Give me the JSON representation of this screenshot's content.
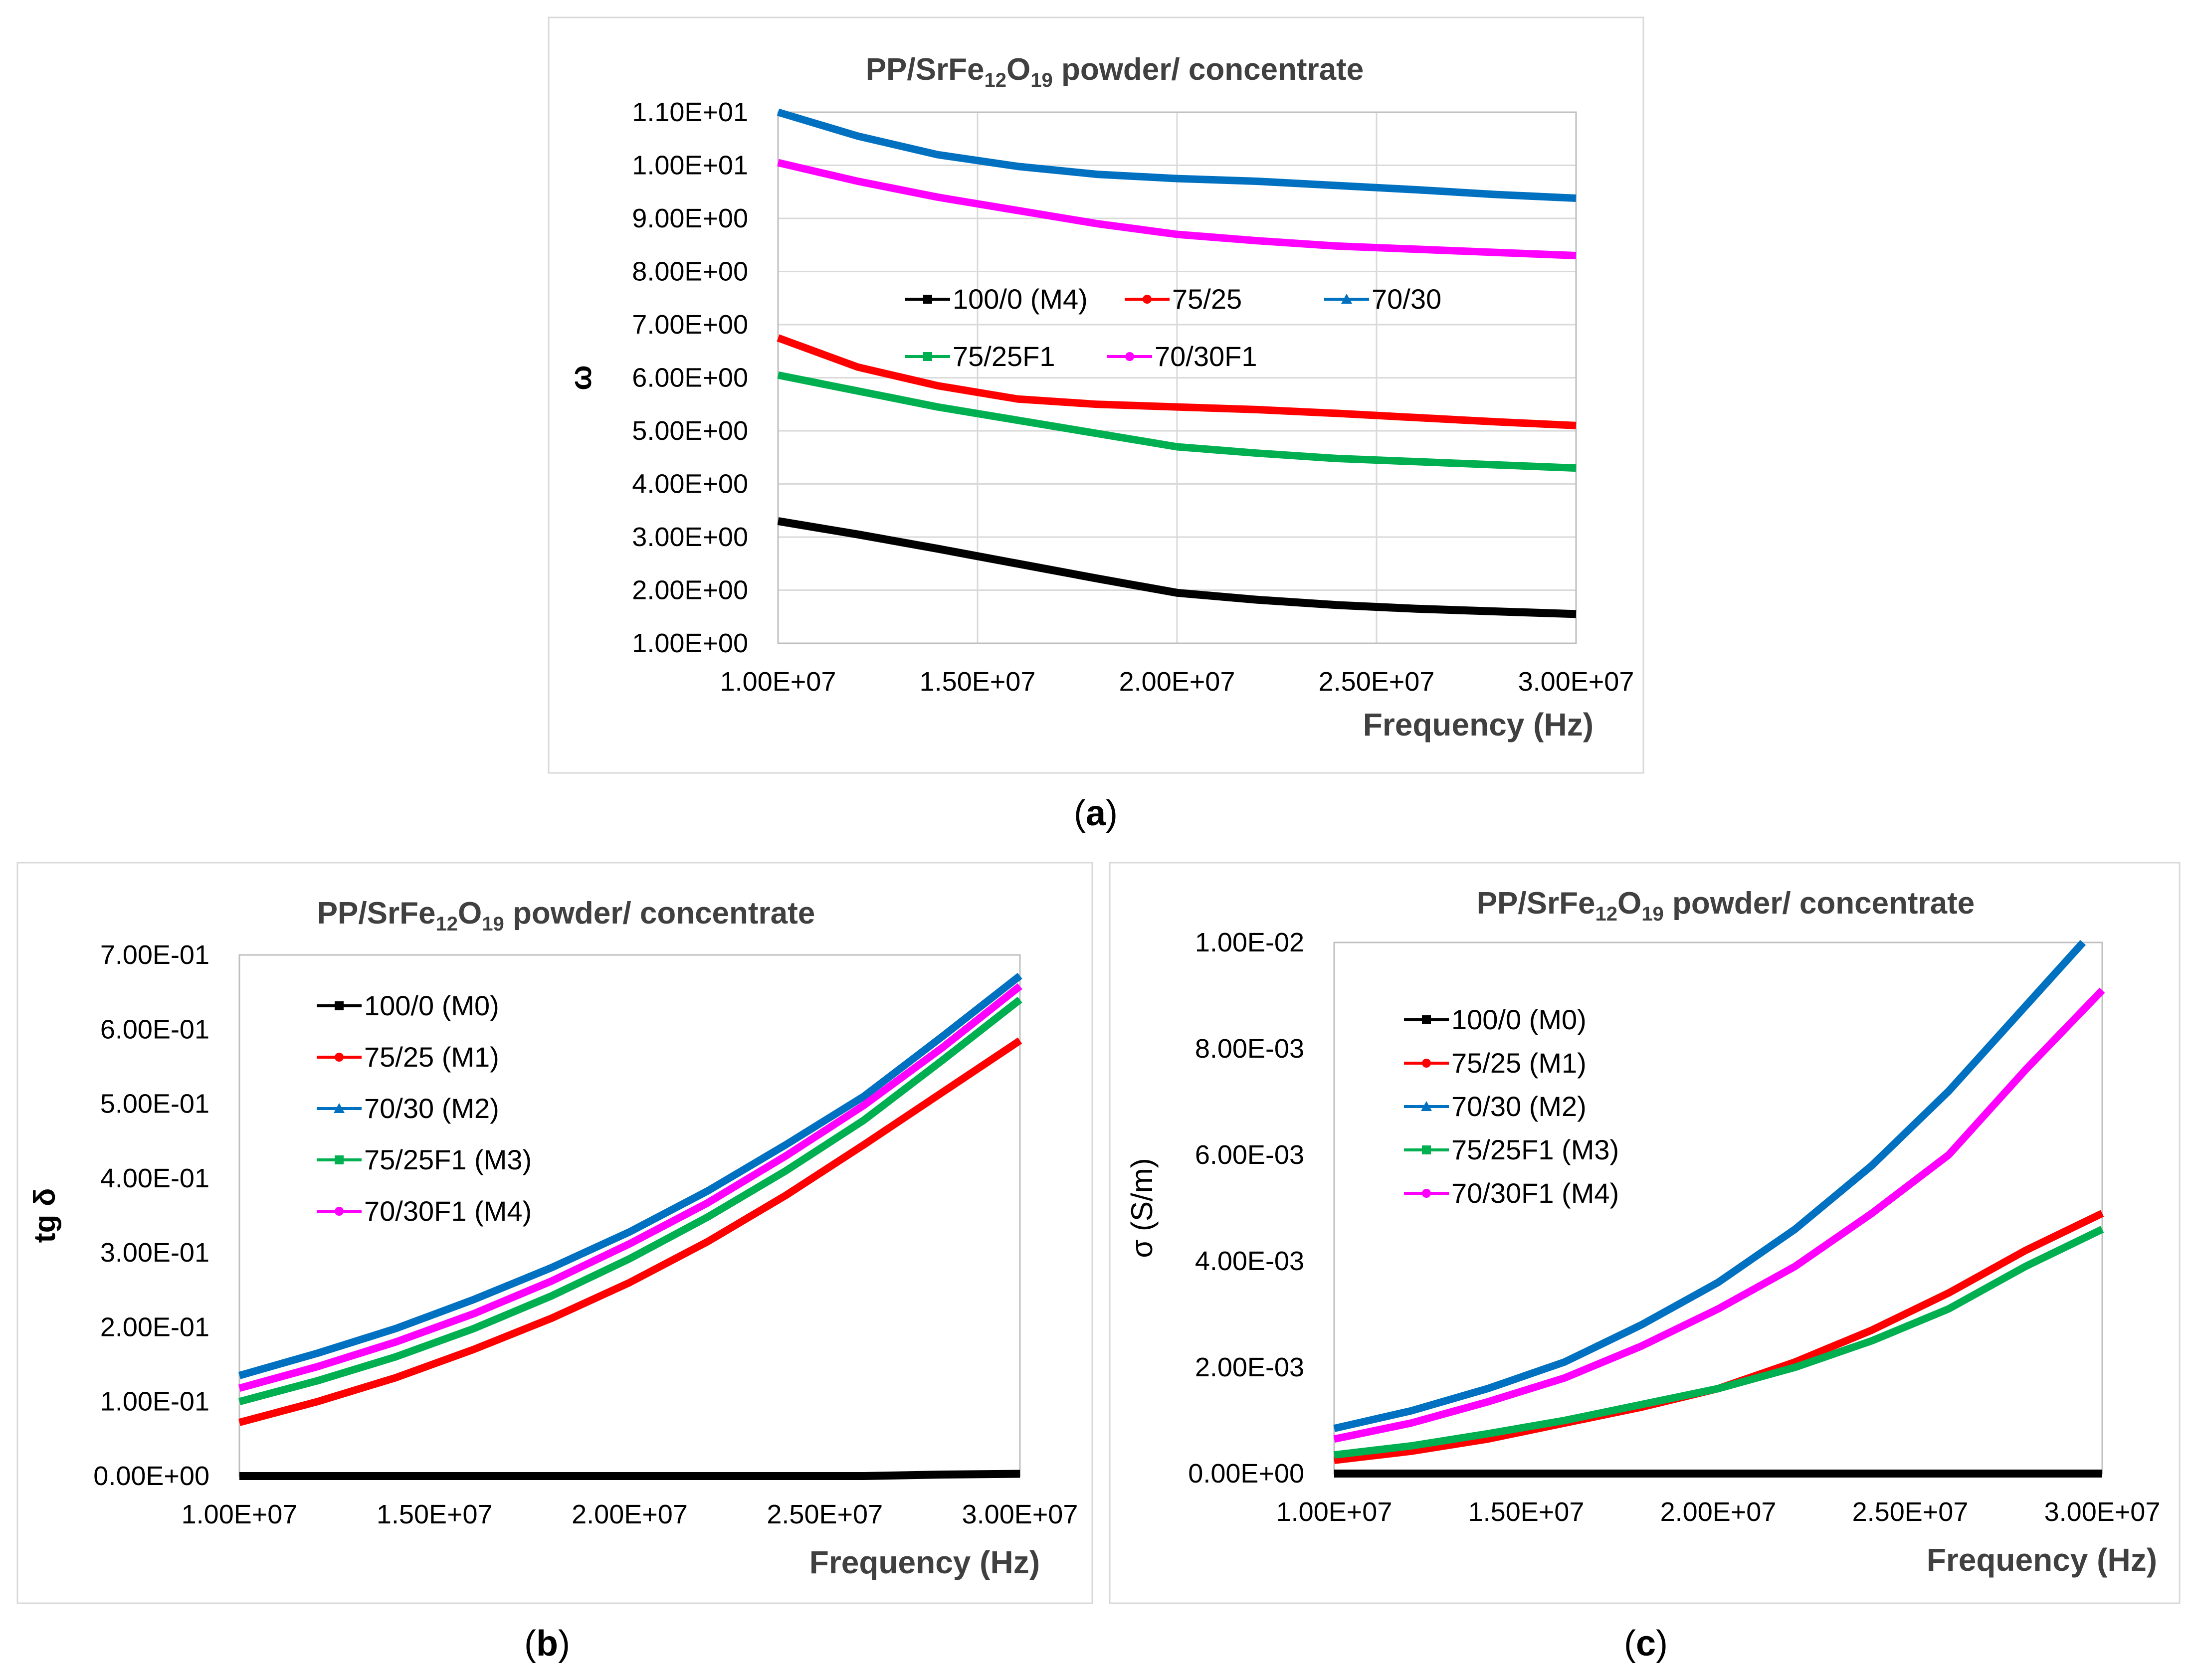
{
  "chart_data": [
    {
      "id": "a",
      "type": "line",
      "panel_label": "a",
      "title": {
        "pre": "PP/SrFe",
        "sub1": "12",
        "mid": "O",
        "sub2": "19",
        "post": "powder/ concentrate"
      },
      "xlabel": "Frequency (Hz)",
      "ylabel": "ω",
      "xlim": [
        10000000,
        30000000
      ],
      "ylim": [
        1.0,
        11.0
      ],
      "x_ticks": [
        "1.00E+07",
        "1.50E+07",
        "2.00E+07",
        "2.50E+07",
        "3.00E+07"
      ],
      "y_ticks": [
        "1.00E+00",
        "2.00E+00",
        "3.00E+00",
        "4.00E+00",
        "5.00E+00",
        "6.00E+00",
        "7.00E+00",
        "8.00E+00",
        "9.00E+00",
        "1.00E+01",
        "1.10E+01"
      ],
      "grid": true,
      "legend": "upper-middle",
      "x": [
        10000000,
        12000000,
        14000000,
        16000000,
        18000000,
        20000000,
        22000000,
        24000000,
        26000000,
        28000000,
        30000000
      ],
      "series": [
        {
          "name": "100/0 (M4)",
          "color": "#000000",
          "values": [
            3.3,
            3.05,
            2.78,
            2.5,
            2.22,
            1.95,
            1.82,
            1.72,
            1.65,
            1.6,
            1.55
          ]
        },
        {
          "name": "75/25",
          "color": "#ff0000",
          "values": [
            6.75,
            6.2,
            5.85,
            5.6,
            5.5,
            5.45,
            5.4,
            5.33,
            5.25,
            5.17,
            5.1
          ]
        },
        {
          "name": "70/30",
          "color": "#0070c0",
          "values": [
            11.0,
            10.55,
            10.2,
            9.98,
            9.83,
            9.75,
            9.7,
            9.62,
            9.54,
            9.45,
            9.38
          ]
        },
        {
          "name": "75/25F1",
          "color": "#00b050",
          "values": [
            6.05,
            5.75,
            5.45,
            5.2,
            4.95,
            4.7,
            4.58,
            4.48,
            4.42,
            4.36,
            4.3
          ]
        },
        {
          "name": "70/30F1",
          "color": "#ff00ff",
          "values": [
            10.05,
            9.7,
            9.4,
            9.15,
            8.9,
            8.7,
            8.58,
            8.48,
            8.42,
            8.36,
            8.3
          ]
        }
      ]
    },
    {
      "id": "b",
      "type": "line",
      "panel_label": "b",
      "title": {
        "pre": "PP/SrFe",
        "sub1": "12",
        "mid": "O",
        "sub2": "19",
        "post": "powder/ concentrate"
      },
      "xlabel": "Frequency (Hz)",
      "ylabel": "tg δ",
      "xlim": [
        10000000,
        30000000
      ],
      "ylim": [
        0.0,
        0.7
      ],
      "x_ticks": [
        "1.00E+07",
        "1.50E+07",
        "2.00E+07",
        "2.50E+07",
        "3.00E+07"
      ],
      "y_ticks": [
        "0.00E+00",
        "1.00E-01",
        "2.00E-01",
        "3.00E-01",
        "4.00E-01",
        "5.00E-01",
        "6.00E-01",
        "7.00E-01"
      ],
      "grid": false,
      "legend": "top-left",
      "x": [
        10000000,
        12000000,
        14000000,
        16000000,
        18000000,
        20000000,
        22000000,
        24000000,
        26000000,
        28000000,
        30000000
      ],
      "series": [
        {
          "name": "100/0 (M0)",
          "color": "#000000",
          "values": [
            0.0,
            0.0,
            0.0,
            0.0,
            0.0,
            0.0,
            0.0,
            0.0,
            0.0,
            0.002,
            0.003
          ]
        },
        {
          "name": "75/25 (M1)",
          "color": "#ff0000",
          "values": [
            0.072,
            0.1,
            0.132,
            0.17,
            0.212,
            0.26,
            0.315,
            0.377,
            0.445,
            0.515,
            0.585
          ]
        },
        {
          "name": "70/30 (M2)",
          "color": "#0070c0",
          "values": [
            0.135,
            0.165,
            0.198,
            0.237,
            0.28,
            0.328,
            0.383,
            0.445,
            0.51,
            0.59,
            0.672
          ]
        },
        {
          "name": "75/25F1 (M3)",
          "color": "#00b050",
          "values": [
            0.1,
            0.128,
            0.16,
            0.198,
            0.242,
            0.292,
            0.348,
            0.41,
            0.478,
            0.558,
            0.64
          ]
        },
        {
          "name": "70/30F1 (M4)",
          "color": "#ff00ff",
          "values": [
            0.118,
            0.147,
            0.18,
            0.218,
            0.262,
            0.312,
            0.367,
            0.43,
            0.498,
            0.575,
            0.658
          ]
        }
      ]
    },
    {
      "id": "c",
      "type": "line",
      "panel_label": "c",
      "title": {
        "pre": "PP/SrFe",
        "sub1": "12",
        "mid": "O",
        "sub2": "19",
        "post": "powder/ concentrate"
      },
      "xlabel": "Frequency (Hz)",
      "ylabel": "σ (S/m)",
      "xlim": [
        10000000,
        30000000
      ],
      "ylim": [
        0.0,
        0.01
      ],
      "x_ticks": [
        "1.00E+07",
        "1.50E+07",
        "2.00E+07",
        "2.50E+07",
        "3.00E+07"
      ],
      "y_ticks": [
        "0.00E+00",
        "2.00E-03",
        "4.00E-03",
        "6.00E-03",
        "8.00E-03",
        "1.00E-02"
      ],
      "grid": false,
      "legend": "top-left",
      "x": [
        10000000,
        12000000,
        14000000,
        16000000,
        18000000,
        20000000,
        22000000,
        24000000,
        26000000,
        28000000,
        29500000,
        30000000
      ],
      "series": [
        {
          "name": "100/0 (M0)",
          "color": "#000000",
          "values": [
            0.0,
            0.0,
            0.0,
            0.0,
            0.0,
            0.0,
            0.0,
            0.0,
            0.0,
            0.0,
            0.0,
            0.0
          ]
        },
        {
          "name": "75/25 (M1)",
          "color": "#ff0000",
          "values": [
            0.00025,
            0.00042,
            0.00065,
            0.00095,
            0.00125,
            0.0016,
            0.0021,
            0.0027,
            0.0034,
            0.0042,
            null,
            0.0049
          ]
        },
        {
          "name": "70/30 (M2)",
          "color": "#0070c0",
          "values": [
            0.00085,
            0.00118,
            0.0016,
            0.0021,
            0.0028,
            0.0036,
            0.0046,
            0.0058,
            0.0072,
            0.0088,
            0.01,
            null
          ]
        },
        {
          "name": "75/25F1 (M3)",
          "color": "#00b050",
          "values": [
            0.00035,
            0.00052,
            0.00075,
            0.001,
            0.0013,
            0.0016,
            0.002,
            0.0025,
            0.0031,
            0.0039,
            null,
            0.0046
          ]
        },
        {
          "name": "70/30F1 (M4)",
          "color": "#ff00ff",
          "values": [
            0.00065,
            0.00095,
            0.00135,
            0.0018,
            0.0024,
            0.0031,
            0.0039,
            0.0049,
            0.006,
            0.0076,
            null,
            0.0091
          ]
        }
      ]
    }
  ]
}
